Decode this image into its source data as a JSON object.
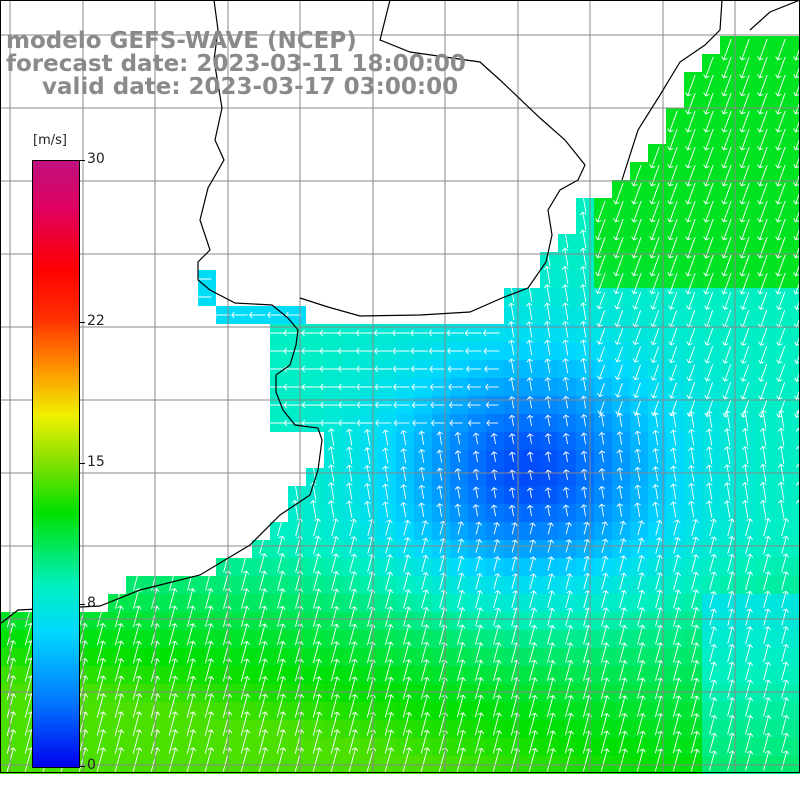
{
  "title": {
    "model": "modelo GEFS-WAVE (NCEP)",
    "forecast": "forecast date: 2023-03-11 18:00:00",
    "valid": "valid date: 2023-03-17 03:00:00"
  },
  "legend": {
    "units": "[m/s]",
    "ticks": [
      "30",
      "22",
      "15",
      "8",
      "0"
    ],
    "tick_values": [
      30,
      22,
      15,
      8,
      0
    ],
    "min": 0,
    "max": 30
  },
  "colors": {
    "land": "#ffffff",
    "grid": "#888888",
    "coast": "#000000",
    "arrow": "#ffffff"
  }
}
